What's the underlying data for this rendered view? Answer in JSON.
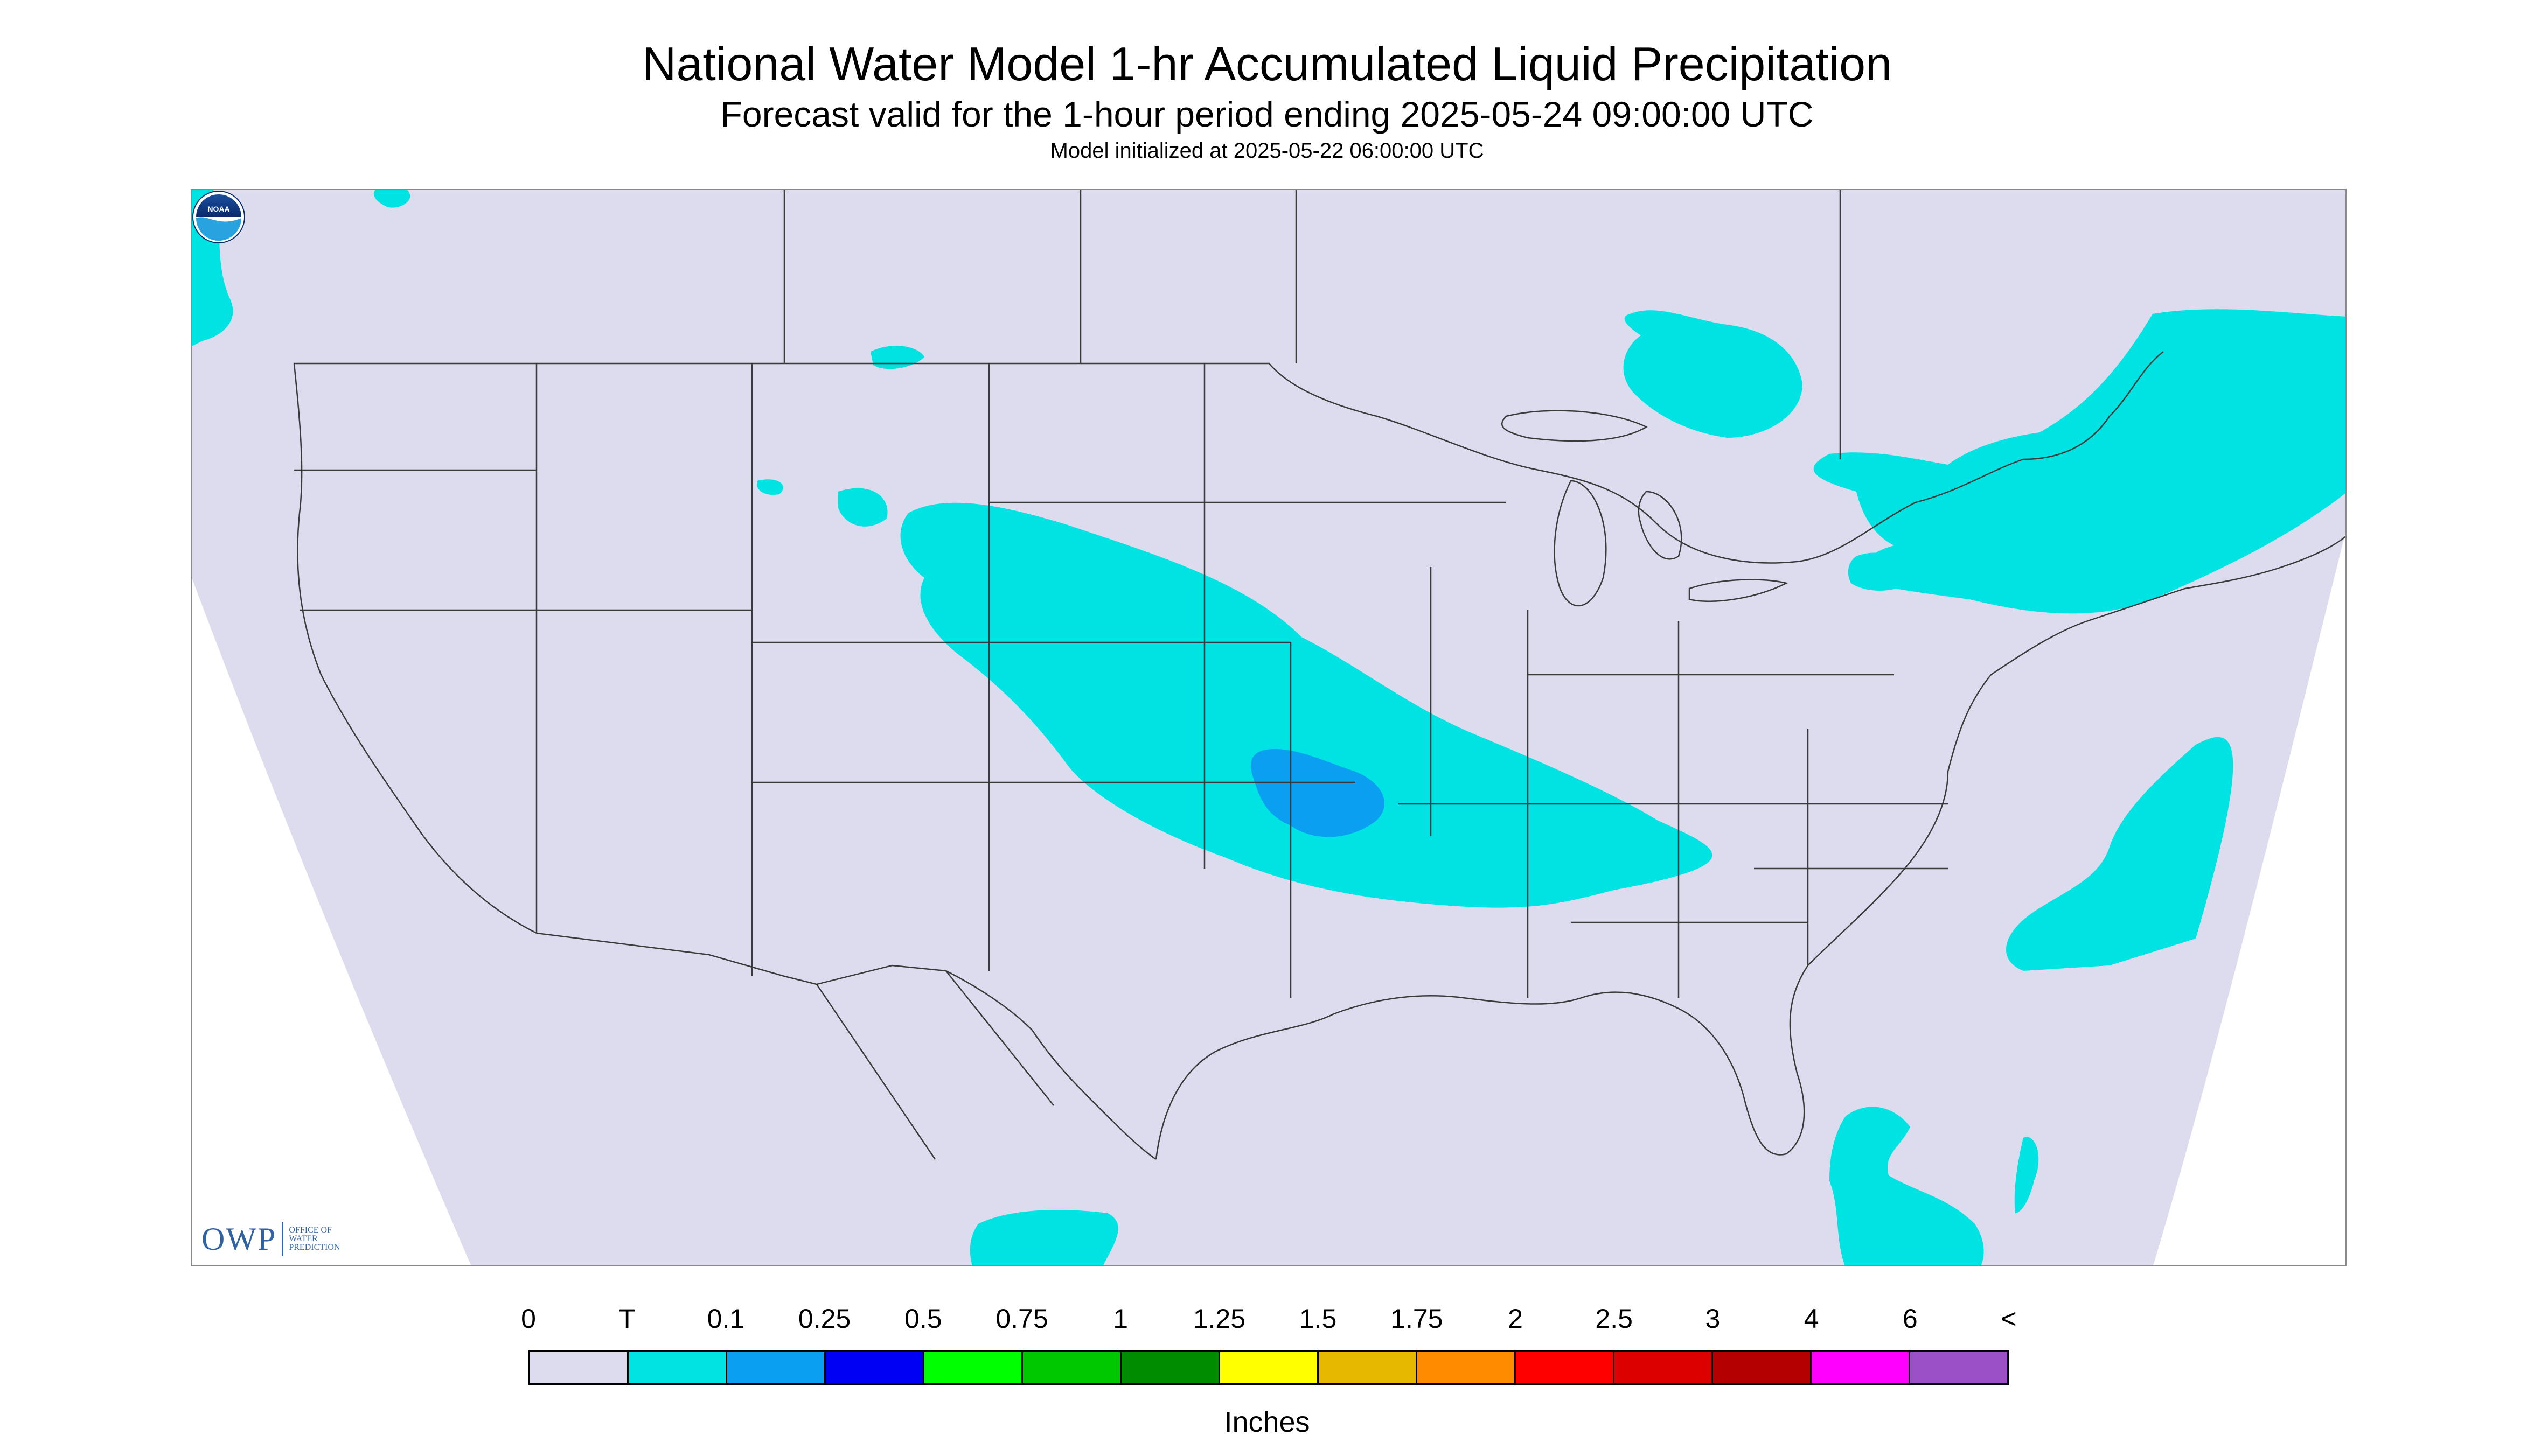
{
  "header": {
    "title": "National Water Model 1-hr Accumulated Liquid Precipitation",
    "subtitle": "Forecast valid for the 1-hour period ending 2025-05-24 09:00:00 UTC",
    "init_line": "Model initialized at 2025-05-22 06:00:00 UTC"
  },
  "map": {
    "region": "Continental United States",
    "base_color": "#dcdcee",
    "outside_color": "#ffffff",
    "boundary_line_color": "#3a3a3a",
    "precip_areas": [
      {
        "region": "Central Plains / Kansas-Missouri-Arkansas band",
        "category": "T"
      },
      {
        "region": "Eastern Kansas core",
        "category": "0.1"
      },
      {
        "region": "Northeast US / Great Lakes / Quebec",
        "category": "T"
      },
      {
        "region": "Northern Ontario",
        "category": "T"
      },
      {
        "region": "Western Atlantic off Carolinas",
        "category": "T"
      },
      {
        "region": "Western Caribbean / Yucatan",
        "category": "T"
      },
      {
        "region": "Pacific Northwest coast",
        "category": "T"
      }
    ]
  },
  "logos": {
    "owp_mark": "OWP",
    "owp_text": [
      "OFFICE OF",
      "WATER",
      "PREDICTION"
    ],
    "noaa_text": "NOAA",
    "owp_icon": "owp-logo",
    "noaa_icon": "noaa-logo"
  },
  "legend": {
    "labels": [
      "0",
      "T",
      "0.1",
      "0.25",
      "0.5",
      "0.75",
      "1",
      "1.25",
      "1.5",
      "1.75",
      "2",
      "2.5",
      "3",
      "4",
      "6",
      "<"
    ],
    "colors": [
      "#dcdcee",
      "#00e3e3",
      "#0a9ff0",
      "#0000f5",
      "#00ff00",
      "#00c800",
      "#008c00",
      "#ffff00",
      "#e6b800",
      "#ff8c00",
      "#ff0000",
      "#dc0000",
      "#b40000",
      "#ff00ff",
      "#9b50c8"
    ],
    "units": "Inches"
  }
}
